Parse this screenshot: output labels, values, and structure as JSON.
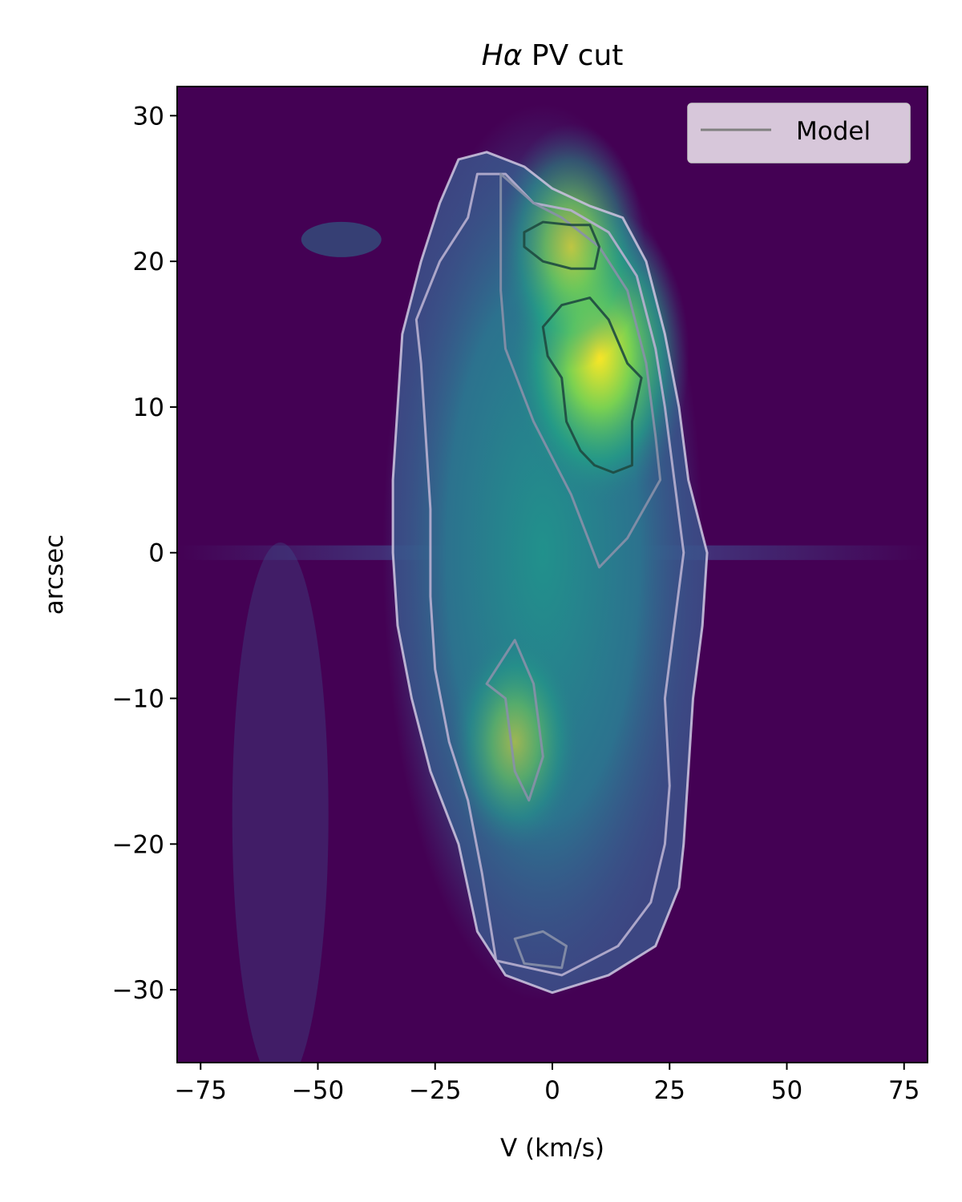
{
  "chart_data": {
    "type": "heatmap",
    "title_prefix": "H",
    "title_symbol": "α",
    "title_suffix": " PV cut",
    "xlabel": "V (km/s)",
    "ylabel": "arcsec",
    "xlim": [
      -80,
      80
    ],
    "ylim": [
      -35,
      32
    ],
    "xticks": [
      -75,
      -50,
      -25,
      0,
      25,
      50,
      75
    ],
    "xtick_labels": [
      "−75",
      "−50",
      "−25",
      "0",
      "25",
      "50",
      "75"
    ],
    "yticks": [
      -30,
      -20,
      -10,
      0,
      10,
      20,
      30
    ],
    "ytick_labels": [
      "−30",
      "−20",
      "−10",
      "0",
      "10",
      "20",
      "30"
    ],
    "colormap": "viridis",
    "legend": {
      "position": "upper-right",
      "entries": [
        {
          "label": "Model",
          "color": "#808080"
        }
      ]
    },
    "emission_peaks": [
      {
        "v": 10,
        "y": 13.5,
        "intensity": 1.0
      },
      {
        "v": 4,
        "y": 21,
        "intensity": 0.7
      },
      {
        "v": -8,
        "y": -13,
        "intensity": 0.55
      }
    ],
    "contours": [
      {
        "level": "outer",
        "color": "#c8c0dc",
        "points": [
          [
            -20,
            27
          ],
          [
            -14,
            27.5
          ],
          [
            -6,
            26.5
          ],
          [
            0,
            25
          ],
          [
            8,
            23.8
          ],
          [
            15,
            23
          ],
          [
            20,
            20
          ],
          [
            24,
            15
          ],
          [
            27,
            10
          ],
          [
            29,
            5
          ],
          [
            33,
            0
          ],
          [
            32,
            -5
          ],
          [
            30,
            -10
          ],
          [
            29,
            -15
          ],
          [
            28,
            -20
          ],
          [
            27,
            -23
          ],
          [
            22,
            -27
          ],
          [
            12,
            -29
          ],
          [
            0,
            -30.2
          ],
          [
            -10,
            -29
          ],
          [
            -16,
            -26
          ],
          [
            -20,
            -20
          ],
          [
            -26,
            -15
          ],
          [
            -30,
            -10
          ],
          [
            -33,
            -5
          ],
          [
            -34,
            0
          ],
          [
            -34,
            5
          ],
          [
            -33,
            10
          ],
          [
            -32,
            15
          ],
          [
            -28,
            20
          ],
          [
            -24,
            24
          ],
          [
            -20,
            27
          ]
        ]
      },
      {
        "level": "mid",
        "color": "#b8b0d0",
        "points": [
          [
            -16,
            26
          ],
          [
            -10,
            26
          ],
          [
            -4,
            24
          ],
          [
            4,
            23.5
          ],
          [
            12,
            22
          ],
          [
            18,
            19
          ],
          [
            22,
            14
          ],
          [
            24,
            10
          ],
          [
            26,
            5
          ],
          [
            28,
            0
          ],
          [
            26,
            -5
          ],
          [
            24,
            -10
          ],
          [
            25,
            -16
          ],
          [
            24,
            -20
          ],
          [
            21,
            -24
          ],
          [
            14,
            -27
          ],
          [
            2,
            -29
          ],
          [
            -12,
            -28
          ],
          [
            -15,
            -22
          ],
          [
            -18,
            -17
          ],
          [
            -22,
            -13
          ],
          [
            -25,
            -8
          ],
          [
            -26,
            -3
          ],
          [
            -26,
            3
          ],
          [
            -27,
            8
          ],
          [
            -28,
            13
          ],
          [
            -29,
            16
          ],
          [
            -24,
            20
          ],
          [
            -18,
            23
          ],
          [
            -16,
            26
          ]
        ]
      },
      {
        "level": "inner",
        "color": "#8890a8",
        "points": [
          [
            -11,
            26
          ],
          [
            -4,
            24
          ],
          [
            2,
            23
          ],
          [
            10,
            21
          ],
          [
            16,
            18
          ],
          [
            20,
            13
          ],
          [
            22,
            8
          ],
          [
            23,
            5
          ],
          [
            16,
            1
          ],
          [
            10,
            -1
          ],
          [
            4,
            4
          ],
          [
            -4,
            9
          ],
          [
            -10,
            14
          ],
          [
            -11,
            18
          ],
          [
            -11,
            22
          ],
          [
            -11,
            26
          ]
        ]
      },
      {
        "level": "inner",
        "color": "#8890a8",
        "points": [
          [
            -14,
            -9
          ],
          [
            -8,
            -6
          ],
          [
            -4,
            -9
          ],
          [
            -2,
            -14
          ],
          [
            -5,
            -17
          ],
          [
            -8,
            -15
          ],
          [
            -10,
            -10
          ],
          [
            -14,
            -9
          ]
        ]
      },
      {
        "level": "inner",
        "color": "#8890a8",
        "points": [
          [
            -8,
            -26.5
          ],
          [
            -2,
            -26
          ],
          [
            3,
            -27
          ],
          [
            2,
            -28.5
          ],
          [
            -6,
            -28.2
          ],
          [
            -8,
            -26.5
          ]
        ]
      },
      {
        "level": "bright",
        "color": "#1e4a40",
        "points": [
          [
            -6,
            22
          ],
          [
            -2,
            22.7
          ],
          [
            4,
            22.5
          ],
          [
            8,
            22.5
          ],
          [
            10,
            21
          ],
          [
            9,
            19.5
          ],
          [
            4,
            19.5
          ],
          [
            -2,
            20
          ],
          [
            -6,
            21
          ],
          [
            -6,
            22
          ]
        ]
      },
      {
        "level": "bright",
        "color": "#1e4a40",
        "points": [
          [
            -2,
            15.5
          ],
          [
            2,
            17
          ],
          [
            8,
            17.5
          ],
          [
            12,
            16
          ],
          [
            16,
            13
          ],
          [
            19,
            12
          ],
          [
            17,
            9
          ],
          [
            17,
            6
          ],
          [
            13,
            5.5
          ],
          [
            9,
            6
          ],
          [
            6,
            7
          ],
          [
            3,
            9
          ],
          [
            2,
            12
          ],
          [
            -1,
            13.5
          ],
          [
            -2,
            15.5
          ]
        ]
      }
    ]
  }
}
